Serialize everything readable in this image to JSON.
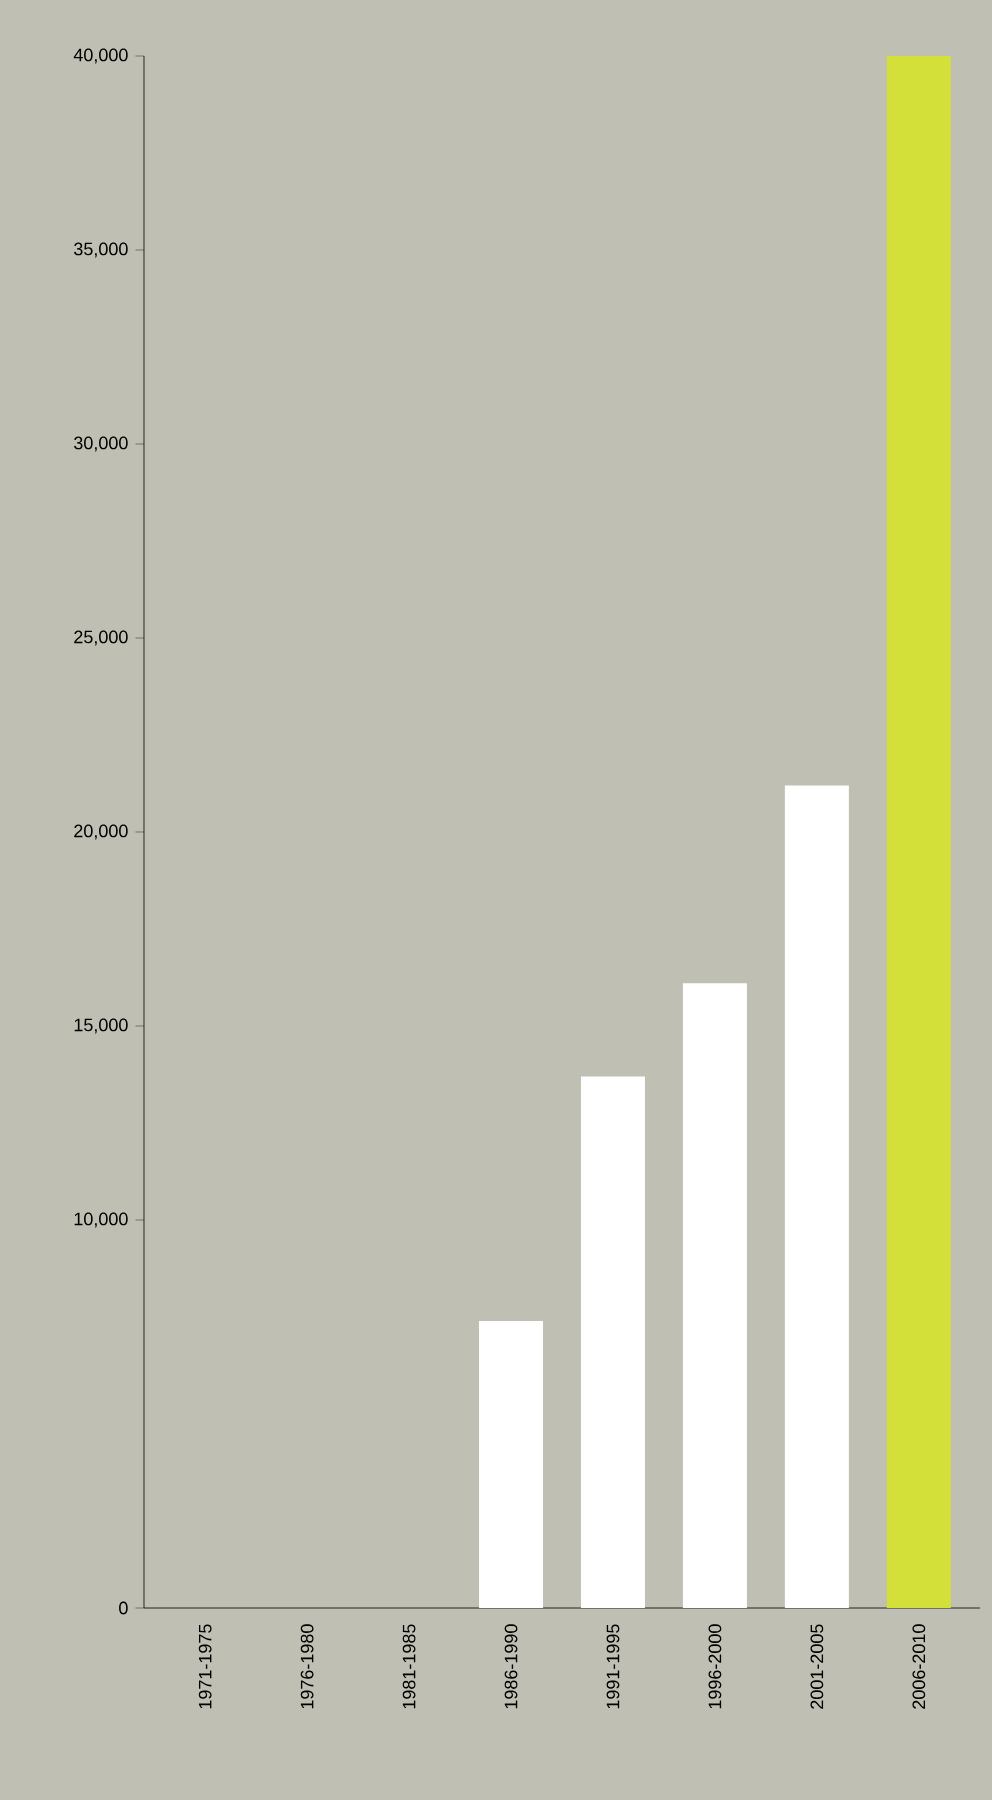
{
  "chart_data": {
    "type": "bar",
    "categories": [
      "1971-1975",
      "1976-1980",
      "1981-1985",
      "1986-1990",
      "1991-1995",
      "1996-2000",
      "2001-2005",
      "2006-2010"
    ],
    "values": [
      null,
      null,
      null,
      7400,
      13700,
      16100,
      21200,
      40000
    ],
    "colors": [
      "#ffffff",
      "#ffffff",
      "#ffffff",
      "#ffffff",
      "#ffffff",
      "#ffffff",
      "#ffffff",
      "#d4e03a"
    ],
    "ylim": [
      0,
      40000
    ],
    "yticks": [
      0,
      {
        "value": 10000,
        "label": "10,000"
      },
      {
        "value": 15000,
        "label": "15,000"
      },
      {
        "value": 20000,
        "label": "20,000"
      },
      {
        "value": 25000,
        "label": "25,000"
      },
      {
        "value": 30000,
        "label": "30,000"
      },
      {
        "value": 35000,
        "label": "35,000"
      },
      {
        "value": 40000,
        "label": "40,000"
      }
    ],
    "grid": false
  }
}
